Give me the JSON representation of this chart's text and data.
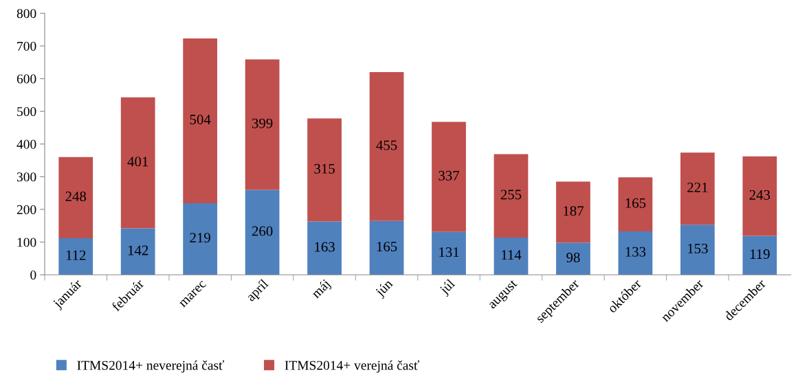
{
  "chart_data": {
    "type": "bar",
    "stacked": true,
    "categories": [
      "január",
      "február",
      "marec",
      "apríl",
      "máj",
      "jún",
      "júl",
      "august",
      "september",
      "október",
      "november",
      "december"
    ],
    "series": [
      {
        "name": "ITMS2014+ neverejná časť",
        "color": "#4f81bd",
        "values": [
          112,
          142,
          219,
          260,
          163,
          165,
          131,
          114,
          98,
          133,
          153,
          119
        ]
      },
      {
        "name": "ITMS2014+ verejná časť",
        "color": "#c0504d",
        "values": [
          248,
          401,
          504,
          399,
          315,
          455,
          337,
          255,
          187,
          165,
          221,
          243
        ]
      }
    ],
    "ylim": [
      0,
      800
    ],
    "yticks": [
      0,
      100,
      200,
      300,
      400,
      500,
      600,
      700,
      800
    ],
    "data_labels": true,
    "grid": false,
    "legend": "bottom left"
  }
}
